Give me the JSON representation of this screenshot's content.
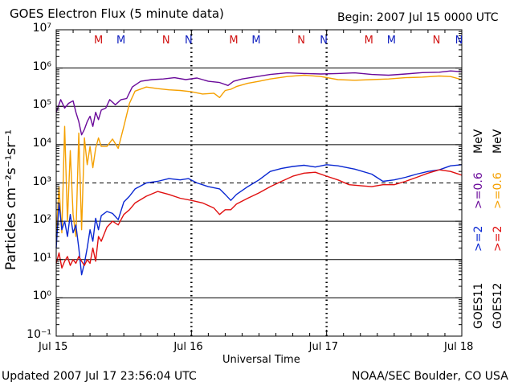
{
  "header": {
    "title": "GOES Electron Flux (5 minute data)",
    "begin": "Begin: 2007 Jul 15 0000 UTC"
  },
  "footer": {
    "updated": "Updated 2007 Jul 17 23:56:04 UTC",
    "credit": "NOAA/SEC Boulder, CO USA"
  },
  "legend": {
    "goes11": "GOES11",
    "goes12": "GOES12",
    "g11_high": ">=2",
    "g11_low": ">=0.6",
    "g12_high": ">=2",
    "g12_low": ">=0.6",
    "unit1": "MeV",
    "unit2": "MeV"
  },
  "colors": {
    "goes11_high": "#0a28d2",
    "goes11_low": "#6a0a9a",
    "goes12_high": "#e01010",
    "goes12_low": "#f5a000",
    "marker_M_N_red": "#d01010",
    "marker_M_N_blue": "#1020c0"
  },
  "chart_data": {
    "type": "line",
    "title": "GOES Electron Flux (5 minute data)",
    "xlabel": "Universal Time",
    "ylabel": "Particles cm⁻²s⁻¹sr⁻¹",
    "y_scale": "log",
    "ylim": [
      0.1,
      10000000
    ],
    "xlim": [
      0,
      72
    ],
    "x_unit": "hours since 2007 Jul 15 0000 UTC",
    "x_ticks": [
      {
        "x": 0,
        "label": "Jul 15"
      },
      {
        "x": 24,
        "label": "Jul 16"
      },
      {
        "x": 48,
        "label": "Jul 17"
      },
      {
        "x": 72,
        "label": "Jul 18"
      }
    ],
    "y_ticks": [
      {
        "value": 0.1,
        "label": "10⁻¹"
      },
      {
        "value": 1,
        "label": "10⁰"
      },
      {
        "value": 10,
        "label": "10¹"
      },
      {
        "value": 100,
        "label": "10²"
      },
      {
        "value": 1000,
        "label": "10³"
      },
      {
        "value": 10000,
        "label": "10⁴"
      },
      {
        "value": 100000,
        "label": "10⁵"
      },
      {
        "value": 1000000,
        "label": "10⁶"
      },
      {
        "value": 10000000,
        "label": "10⁷"
      }
    ],
    "threshold_line": 1000,
    "markers": [
      {
        "x": 7.5,
        "label": "M",
        "color": "red"
      },
      {
        "x": 11.5,
        "label": "M",
        "color": "blue"
      },
      {
        "x": 19.5,
        "label": "N",
        "color": "red"
      },
      {
        "x": 23.5,
        "label": "N",
        "color": "blue"
      },
      {
        "x": 31.5,
        "label": "M",
        "color": "red"
      },
      {
        "x": 35.5,
        "label": "M",
        "color": "blue"
      },
      {
        "x": 43.5,
        "label": "N",
        "color": "red"
      },
      {
        "x": 47.5,
        "label": "N",
        "color": "blue"
      },
      {
        "x": 55.5,
        "label": "M",
        "color": "red"
      },
      {
        "x": 59.5,
        "label": "M",
        "color": "blue"
      },
      {
        "x": 67.5,
        "label": "N",
        "color": "red"
      },
      {
        "x": 71.5,
        "label": "N",
        "color": "blue"
      }
    ],
    "series": [
      {
        "name": "GOES11 >=0.6 MeV",
        "color_key": "goes11_low",
        "x": [
          0,
          0.8,
          1.5,
          2.2,
          3,
          3.5,
          4,
          4.5,
          5,
          5.5,
          6,
          6.5,
          7,
          7.5,
          8,
          8.8,
          9.5,
          10.5,
          11.5,
          12.5,
          13.5,
          15,
          17,
          19,
          21,
          23,
          25,
          27,
          29,
          30.5,
          31.5,
          33,
          35,
          38,
          41,
          44,
          47,
          50,
          53,
          56,
          59,
          62,
          65,
          68,
          70,
          72
        ],
        "y": [
          70000,
          150000,
          90000,
          120000,
          140000,
          70000,
          40000,
          18000,
          25000,
          40000,
          55000,
          30000,
          70000,
          45000,
          80000,
          90000,
          150000,
          110000,
          150000,
          160000,
          320000,
          450000,
          500000,
          520000,
          560000,
          500000,
          550000,
          450000,
          420000,
          350000,
          450000,
          520000,
          580000,
          680000,
          750000,
          720000,
          700000,
          720000,
          750000,
          680000,
          650000,
          700000,
          760000,
          780000,
          840000,
          800000
        ]
      },
      {
        "name": "GOES12 >=0.6 MeV",
        "color_key": "goes12_low",
        "x": [
          0,
          0.5,
          1,
          1.5,
          2,
          2.5,
          3,
          3.5,
          4,
          4.5,
          5,
          5.5,
          6,
          6.5,
          7,
          7.5,
          8,
          9,
          10,
          11,
          12,
          13,
          14,
          16,
          18,
          20,
          22,
          24,
          26,
          28,
          29,
          30,
          31,
          32,
          34,
          36,
          38,
          41,
          44,
          47,
          50,
          53,
          56,
          59,
          62,
          65,
          68,
          70,
          72
        ],
        "y": [
          40,
          800,
          50,
          30000,
          100,
          7000,
          150,
          40,
          20000,
          60,
          15000,
          3000,
          9000,
          2500,
          8000,
          15000,
          9000,
          9000,
          14000,
          8000,
          30000,
          120000,
          250000,
          320000,
          290000,
          270000,
          260000,
          240000,
          210000,
          220000,
          170000,
          260000,
          280000,
          330000,
          400000,
          450000,
          520000,
          600000,
          650000,
          600000,
          500000,
          480000,
          500000,
          520000,
          560000,
          580000,
          620000,
          600000,
          500000
        ]
      },
      {
        "name": "GOES11 >=2 MeV",
        "color_key": "goes11_high",
        "x": [
          0,
          0.5,
          1,
          1.5,
          2,
          2.5,
          3,
          3.5,
          4,
          4.5,
          5,
          5.5,
          6,
          6.5,
          7,
          7.5,
          8,
          9,
          10,
          11,
          12,
          13,
          14,
          16,
          18,
          20,
          22,
          23.5,
          25,
          27,
          29,
          30,
          31,
          32,
          34,
          36,
          38,
          40,
          42,
          44,
          46,
          48,
          50,
          53,
          56,
          58,
          60,
          62,
          64,
          66,
          68,
          70,
          72
        ],
        "y": [
          20,
          300,
          60,
          100,
          40,
          150,
          50,
          80,
          20,
          4,
          8,
          20,
          60,
          30,
          120,
          60,
          140,
          180,
          160,
          110,
          320,
          450,
          700,
          1000,
          1100,
          1300,
          1200,
          1300,
          1000,
          800,
          700,
          500,
          350,
          500,
          800,
          1200,
          2000,
          2400,
          2700,
          2900,
          2600,
          3000,
          2800,
          2300,
          1700,
          1100,
          1200,
          1400,
          1700,
          2000,
          2200,
          2800,
          3000
        ]
      },
      {
        "name": "GOES12 >=2 MeV",
        "color_key": "goes12_high",
        "x": [
          0,
          0.5,
          1,
          1.5,
          2,
          2.5,
          3,
          3.5,
          4,
          4.5,
          5,
          5.5,
          6,
          6.5,
          7,
          7.5,
          8,
          9,
          10,
          11,
          12,
          13,
          14,
          16,
          18,
          20,
          22,
          24,
          26,
          28,
          29,
          30,
          31,
          32,
          34,
          36,
          38,
          40,
          42,
          44,
          46,
          48,
          50,
          52,
          54,
          56,
          58,
          60,
          62,
          64,
          66,
          68,
          70,
          72
        ],
        "y": [
          8,
          15,
          6,
          9,
          12,
          7,
          10,
          8,
          12,
          9,
          7,
          10,
          8,
          20,
          9,
          40,
          30,
          70,
          100,
          80,
          150,
          200,
          300,
          450,
          600,
          500,
          400,
          350,
          300,
          220,
          150,
          200,
          200,
          280,
          400,
          550,
          800,
          1100,
          1500,
          1800,
          1900,
          1500,
          1200,
          900,
          850,
          800,
          900,
          900,
          1100,
          1400,
          1800,
          2200,
          2000,
          1600
        ]
      }
    ]
  }
}
